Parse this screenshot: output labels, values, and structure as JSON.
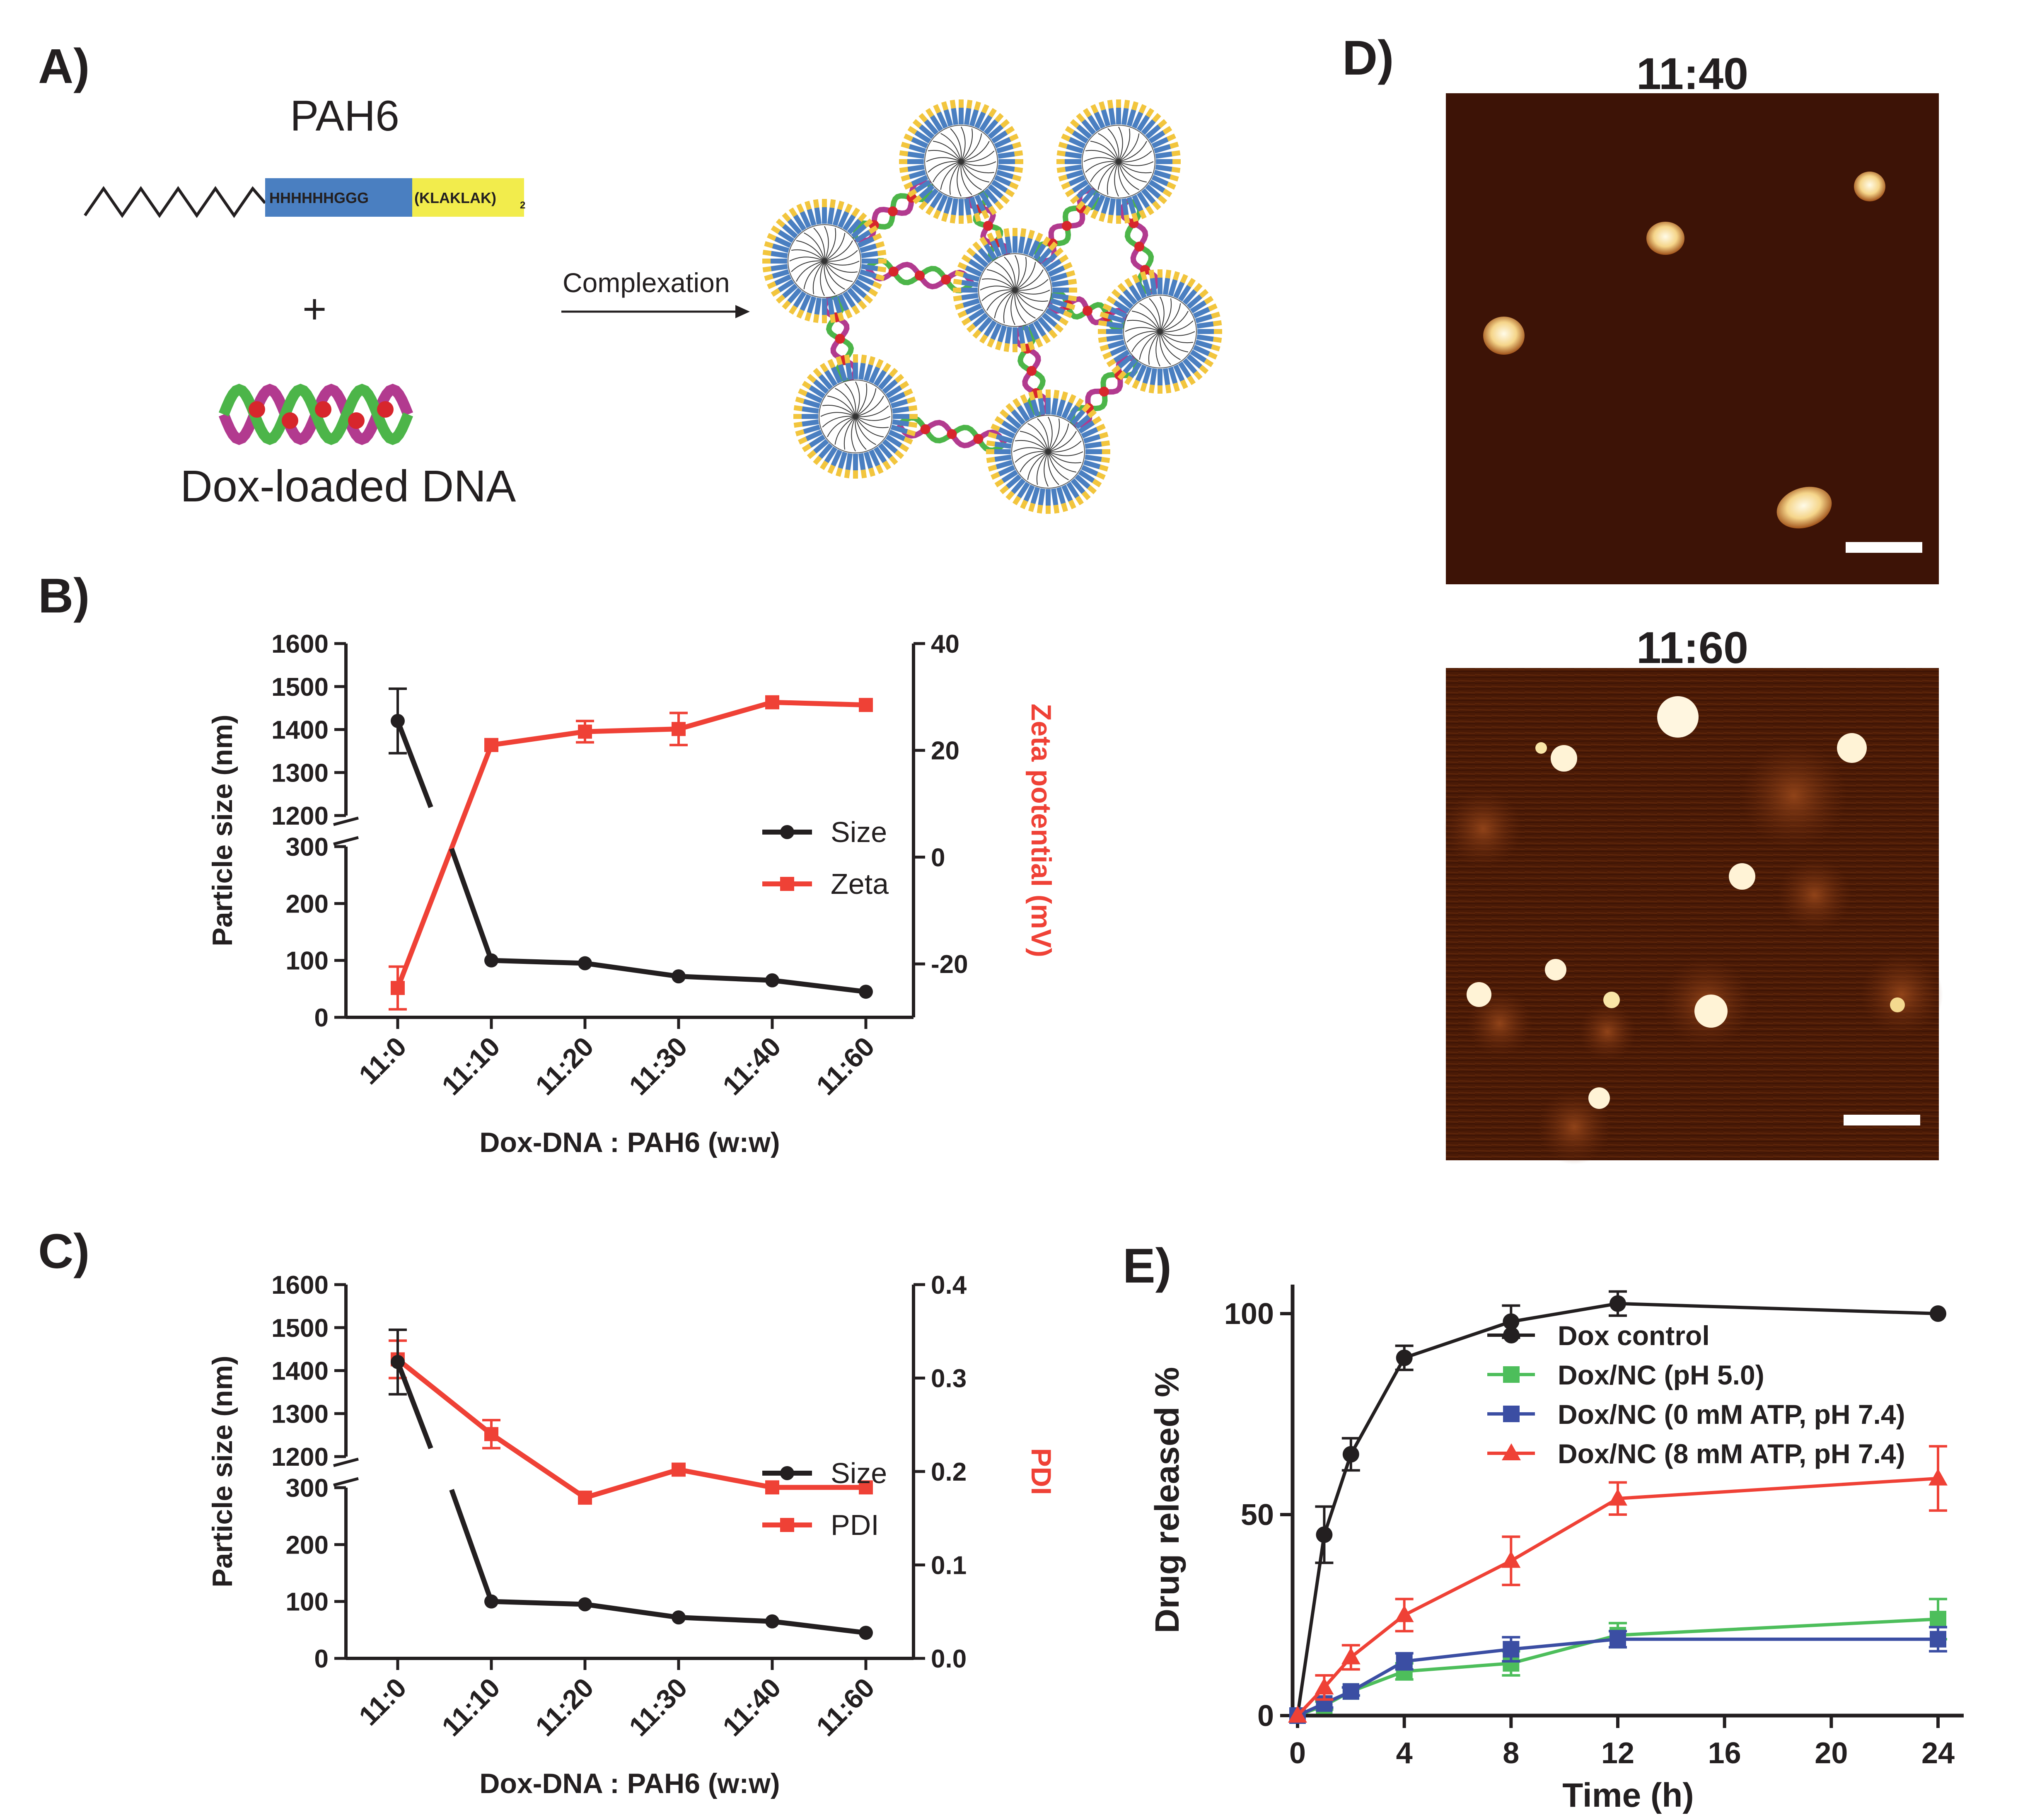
{
  "panels": {
    "a": {
      "label": "A)",
      "peptide_name": "PAH6",
      "seq_his": "HHHHHHGGG",
      "seq_klak": "(KLAKLAK)",
      "seq_klak_sub": "2",
      "plus": "+",
      "dna_label": "Dox-loaded DNA",
      "arrow_label": "Complexation"
    },
    "b": {
      "label": "B)"
    },
    "c": {
      "label": "C)"
    },
    "d": {
      "label": "D)",
      "top_title": "11:40",
      "bottom_title": "11:60"
    },
    "e": {
      "label": "E)"
    }
  },
  "colors": {
    "black": "#231f20",
    "red": "#ef4136",
    "green": "#4dbe5b",
    "blue": "#3b4ea3",
    "his_block": "#4a7fc1",
    "klak_block": "#f2ec4c",
    "dna_green": "#4cb549",
    "dna_magenta": "#b23a8f",
    "dox": "#d7262c",
    "afm_dark": "#3a1205"
  },
  "chart_data": [
    {
      "panel": "B",
      "type": "line",
      "categories": [
        "11:0",
        "11:10",
        "11:20",
        "11:30",
        "11:40",
        "11:60"
      ],
      "xlabel": "Dox-DNA : PAH6 (w:w)",
      "ylabel": "Particle size (nm)",
      "y2label": "Zeta potential (mV)",
      "y_ticks_lower": [
        0,
        100,
        200,
        300
      ],
      "y_ticks_upper": [
        1200,
        1300,
        1400,
        1500,
        1600
      ],
      "y_axis_break": [
        300,
        1200
      ],
      "y2lim": [
        -30,
        40
      ],
      "y2_ticks": [
        -20,
        0,
        20,
        40
      ],
      "legend_position": "center-right",
      "series": [
        {
          "name": "Size",
          "axis": "left",
          "marker": "circle",
          "values": [
            1420,
            100,
            95,
            72,
            65,
            45
          ],
          "errors": [
            75,
            0,
            0,
            0,
            0,
            0
          ],
          "gap_after_first": true
        },
        {
          "name": "Zeta",
          "axis": "right",
          "marker": "square",
          "values": [
            -24.5,
            21,
            23.5,
            24,
            29,
            28.5
          ],
          "errors": [
            4,
            0,
            2,
            3,
            0,
            0
          ]
        }
      ]
    },
    {
      "panel": "C",
      "type": "line",
      "categories": [
        "11:0",
        "11:10",
        "11:20",
        "11:30",
        "11:40",
        "11:60"
      ],
      "xlabel": "Dox-DNA : PAH6 (w:w)",
      "ylabel": "Particle size (nm)",
      "y2label": "PDI",
      "y_ticks_lower": [
        0,
        100,
        200,
        300
      ],
      "y_ticks_upper": [
        1200,
        1300,
        1400,
        1500,
        1600
      ],
      "y_axis_break": [
        300,
        1200
      ],
      "y2lim": [
        0.0,
        0.4
      ],
      "y2_ticks": [
        "0.0",
        "0.1",
        "0.2",
        "0.3",
        "0.4"
      ],
      "legend_position": "center-right",
      "series": [
        {
          "name": "Size",
          "axis": "left",
          "marker": "circle",
          "values": [
            1420,
            100,
            95,
            72,
            65,
            45
          ],
          "errors": [
            75,
            0,
            0,
            0,
            0,
            0
          ],
          "gap_after_first": true
        },
        {
          "name": "PDI",
          "axis": "right",
          "marker": "square",
          "values": [
            0.32,
            0.24,
            0.172,
            0.202,
            0.183,
            0.183
          ],
          "errors": [
            0.02,
            0.015,
            0,
            0,
            0,
            0
          ]
        }
      ]
    },
    {
      "panel": "E",
      "type": "line",
      "xlabel": "Time (h)",
      "ylabel": "Drug released %",
      "xlim": [
        0,
        24
      ],
      "ylim": [
        0,
        100
      ],
      "x_ticks": [
        0,
        4,
        8,
        12,
        16,
        20,
        24
      ],
      "y_ticks": [
        0,
        50,
        100
      ],
      "legend_position": "top-right",
      "series": [
        {
          "name": "Dox control",
          "marker": "circle",
          "color": "#231f20",
          "x": [
            0,
            1,
            2,
            4,
            8,
            12,
            24
          ],
          "values": [
            0,
            45,
            65,
            89,
            98,
            102.5,
            100
          ],
          "errors": [
            0,
            7,
            4,
            3,
            4,
            3,
            0
          ]
        },
        {
          "name": "Dox/NC (pH 5.0)",
          "marker": "square",
          "color": "#4dbe5b",
          "x": [
            0,
            1,
            2,
            4,
            8,
            12,
            24
          ],
          "values": [
            0,
            2.5,
            6,
            11,
            13,
            20,
            24
          ],
          "errors": [
            0,
            1,
            1,
            2,
            3,
            3,
            5
          ]
        },
        {
          "name": "Dox/NC (0 mM ATP, pH 7.4)",
          "marker": "square",
          "color": "#3b4ea3",
          "x": [
            0,
            1,
            2,
            4,
            8,
            12,
            24
          ],
          "values": [
            0,
            3,
            6,
            13.5,
            16.5,
            19,
            19
          ],
          "errors": [
            0,
            1,
            1,
            2,
            3,
            2,
            3
          ]
        },
        {
          "name": "Dox/NC (8 mM ATP, pH 7.4)",
          "marker": "triangle",
          "color": "#ef4136",
          "x": [
            0,
            1,
            2,
            4,
            8,
            12,
            24
          ],
          "values": [
            0,
            7,
            14.5,
            25,
            38.5,
            54,
            59
          ],
          "errors": [
            0,
            3,
            3,
            4,
            6,
            4,
            8
          ]
        }
      ]
    }
  ]
}
